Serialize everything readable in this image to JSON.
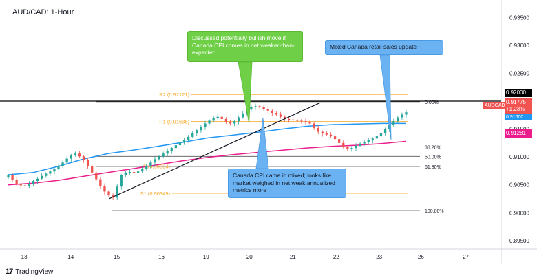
{
  "header": {
    "title": "AUD/CAD: 1-Hour"
  },
  "brand": {
    "logo_glyph": "17",
    "name": "TradingView"
  },
  "colors": {
    "up": "#26a69a",
    "down": "#ef5350",
    "ma_blue": "#2196f3",
    "ma_pink": "#e91e8c",
    "fib": "#555555",
    "pivot": "#f5a623",
    "resistance": "#000000",
    "price_tag": "#f05350"
  },
  "annotations": {
    "green_callout": "Discussed potentially bullish move if Canada CPI comes in net weaker-than-expected",
    "blue_top_callout": "Mixed Canada retail sales update",
    "blue_bottom_callout": "Canada CPI came in mixed; looks like market weighed in net weak annualized metrics more"
  },
  "price_tags": {
    "symbol": "AUDCAD",
    "last": "0.91775",
    "change": "+1.23%",
    "hidden_ma": "0.91600",
    "resistance": "0.92000",
    "pink_ma": "0.91281"
  },
  "chart_data": {
    "type": "candlestick",
    "title": "AUD/CAD: 1-Hour",
    "y_axis": {
      "ticks": [
        "0.93500",
        "0.93000",
        "0.92500",
        "0.92000",
        "0.91500",
        "0.91000",
        "0.90500",
        "0.90000",
        "0.89500"
      ],
      "range": [
        0.8935,
        0.9375
      ]
    },
    "x_axis": {
      "ticks": [
        "13",
        "14",
        "15",
        "16",
        "19",
        "20",
        "21",
        "22",
        "23",
        "26",
        "27"
      ]
    },
    "horizontal_levels": [
      {
        "name": "resistance",
        "value": 0.92,
        "label": ""
      },
      {
        "name": "R2",
        "value": 0.92121,
        "label": "R2 (0.92121)"
      },
      {
        "name": "R1",
        "value": 0.91636,
        "label": "R1 (0.91636)"
      },
      {
        "name": "P",
        "value": 0.90834,
        "label": "P (0.90834)"
      },
      {
        "name": "S1",
        "value": 0.90349,
        "label": "S1 (0.90349)"
      }
    ],
    "fibonacci": [
      {
        "label": "0.00%",
        "value": 0.9199
      },
      {
        "label": "38.20%",
        "value": 0.9118
      },
      {
        "label": "50.00%",
        "value": 0.9101
      },
      {
        "label": "61.80%",
        "value": 0.9083
      },
      {
        "label": "100.00%",
        "value": 0.9004
      }
    ],
    "trendline": {
      "from": 0.9025,
      "to": 0.9197
    },
    "close_path": [
      0.9067,
      0.9059,
      0.9052,
      0.9049,
      0.9048,
      0.9052,
      0.9057,
      0.9061,
      0.9066,
      0.907,
      0.9074,
      0.9079,
      0.9084,
      0.909,
      0.9097,
      0.9103,
      0.9106,
      0.9101,
      0.9094,
      0.9084,
      0.9072,
      0.906,
      0.9048,
      0.9038,
      0.9031,
      0.9027,
      0.9047,
      0.9067,
      0.9072,
      0.9073,
      0.9071,
      0.9074,
      0.9079,
      0.9084,
      0.909,
      0.9096,
      0.9101,
      0.9106,
      0.9111,
      0.9116,
      0.9121,
      0.9126,
      0.9131,
      0.9136,
      0.9142,
      0.9148,
      0.9154,
      0.916,
      0.9165,
      0.917,
      0.9172,
      0.9168,
      0.9162,
      0.916,
      0.9164,
      0.9171,
      0.9178,
      0.9185,
      0.919,
      0.9191,
      0.9189,
      0.9186,
      0.9183,
      0.9179,
      0.9176,
      0.9172,
      0.9168,
      0.9167,
      0.9166,
      0.9165,
      0.9164,
      0.9163,
      0.916,
      0.9152,
      0.9145,
      0.9142,
      0.914,
      0.9137,
      0.9132,
      0.9125,
      0.9118,
      0.9114,
      0.9116,
      0.912,
      0.9124,
      0.9127,
      0.913,
      0.9133,
      0.9137,
      0.9143,
      0.915,
      0.9157,
      0.9164,
      0.9171,
      0.9176,
      0.918
    ],
    "series": [
      {
        "name": "",
        "values": [
          0.9068,
          0.9072,
          0.9083,
          0.9096,
          0.9106,
          0.9112,
          0.9119,
          0.9126,
          0.9134,
          0.9139,
          0.9144,
          0.915,
          0.9155,
          0.9158,
          0.9159,
          0.916,
          0.916
        ]
      },
      {
        "name": "",
        "values": [
          0.905,
          0.9053,
          0.9058,
          0.9065,
          0.9072,
          0.9079,
          0.9086,
          0.9093,
          0.9099,
          0.9104,
          0.9108,
          0.9112,
          0.9116,
          0.9119,
          0.9121,
          0.9124,
          0.9128
        ]
      }
    ]
  }
}
